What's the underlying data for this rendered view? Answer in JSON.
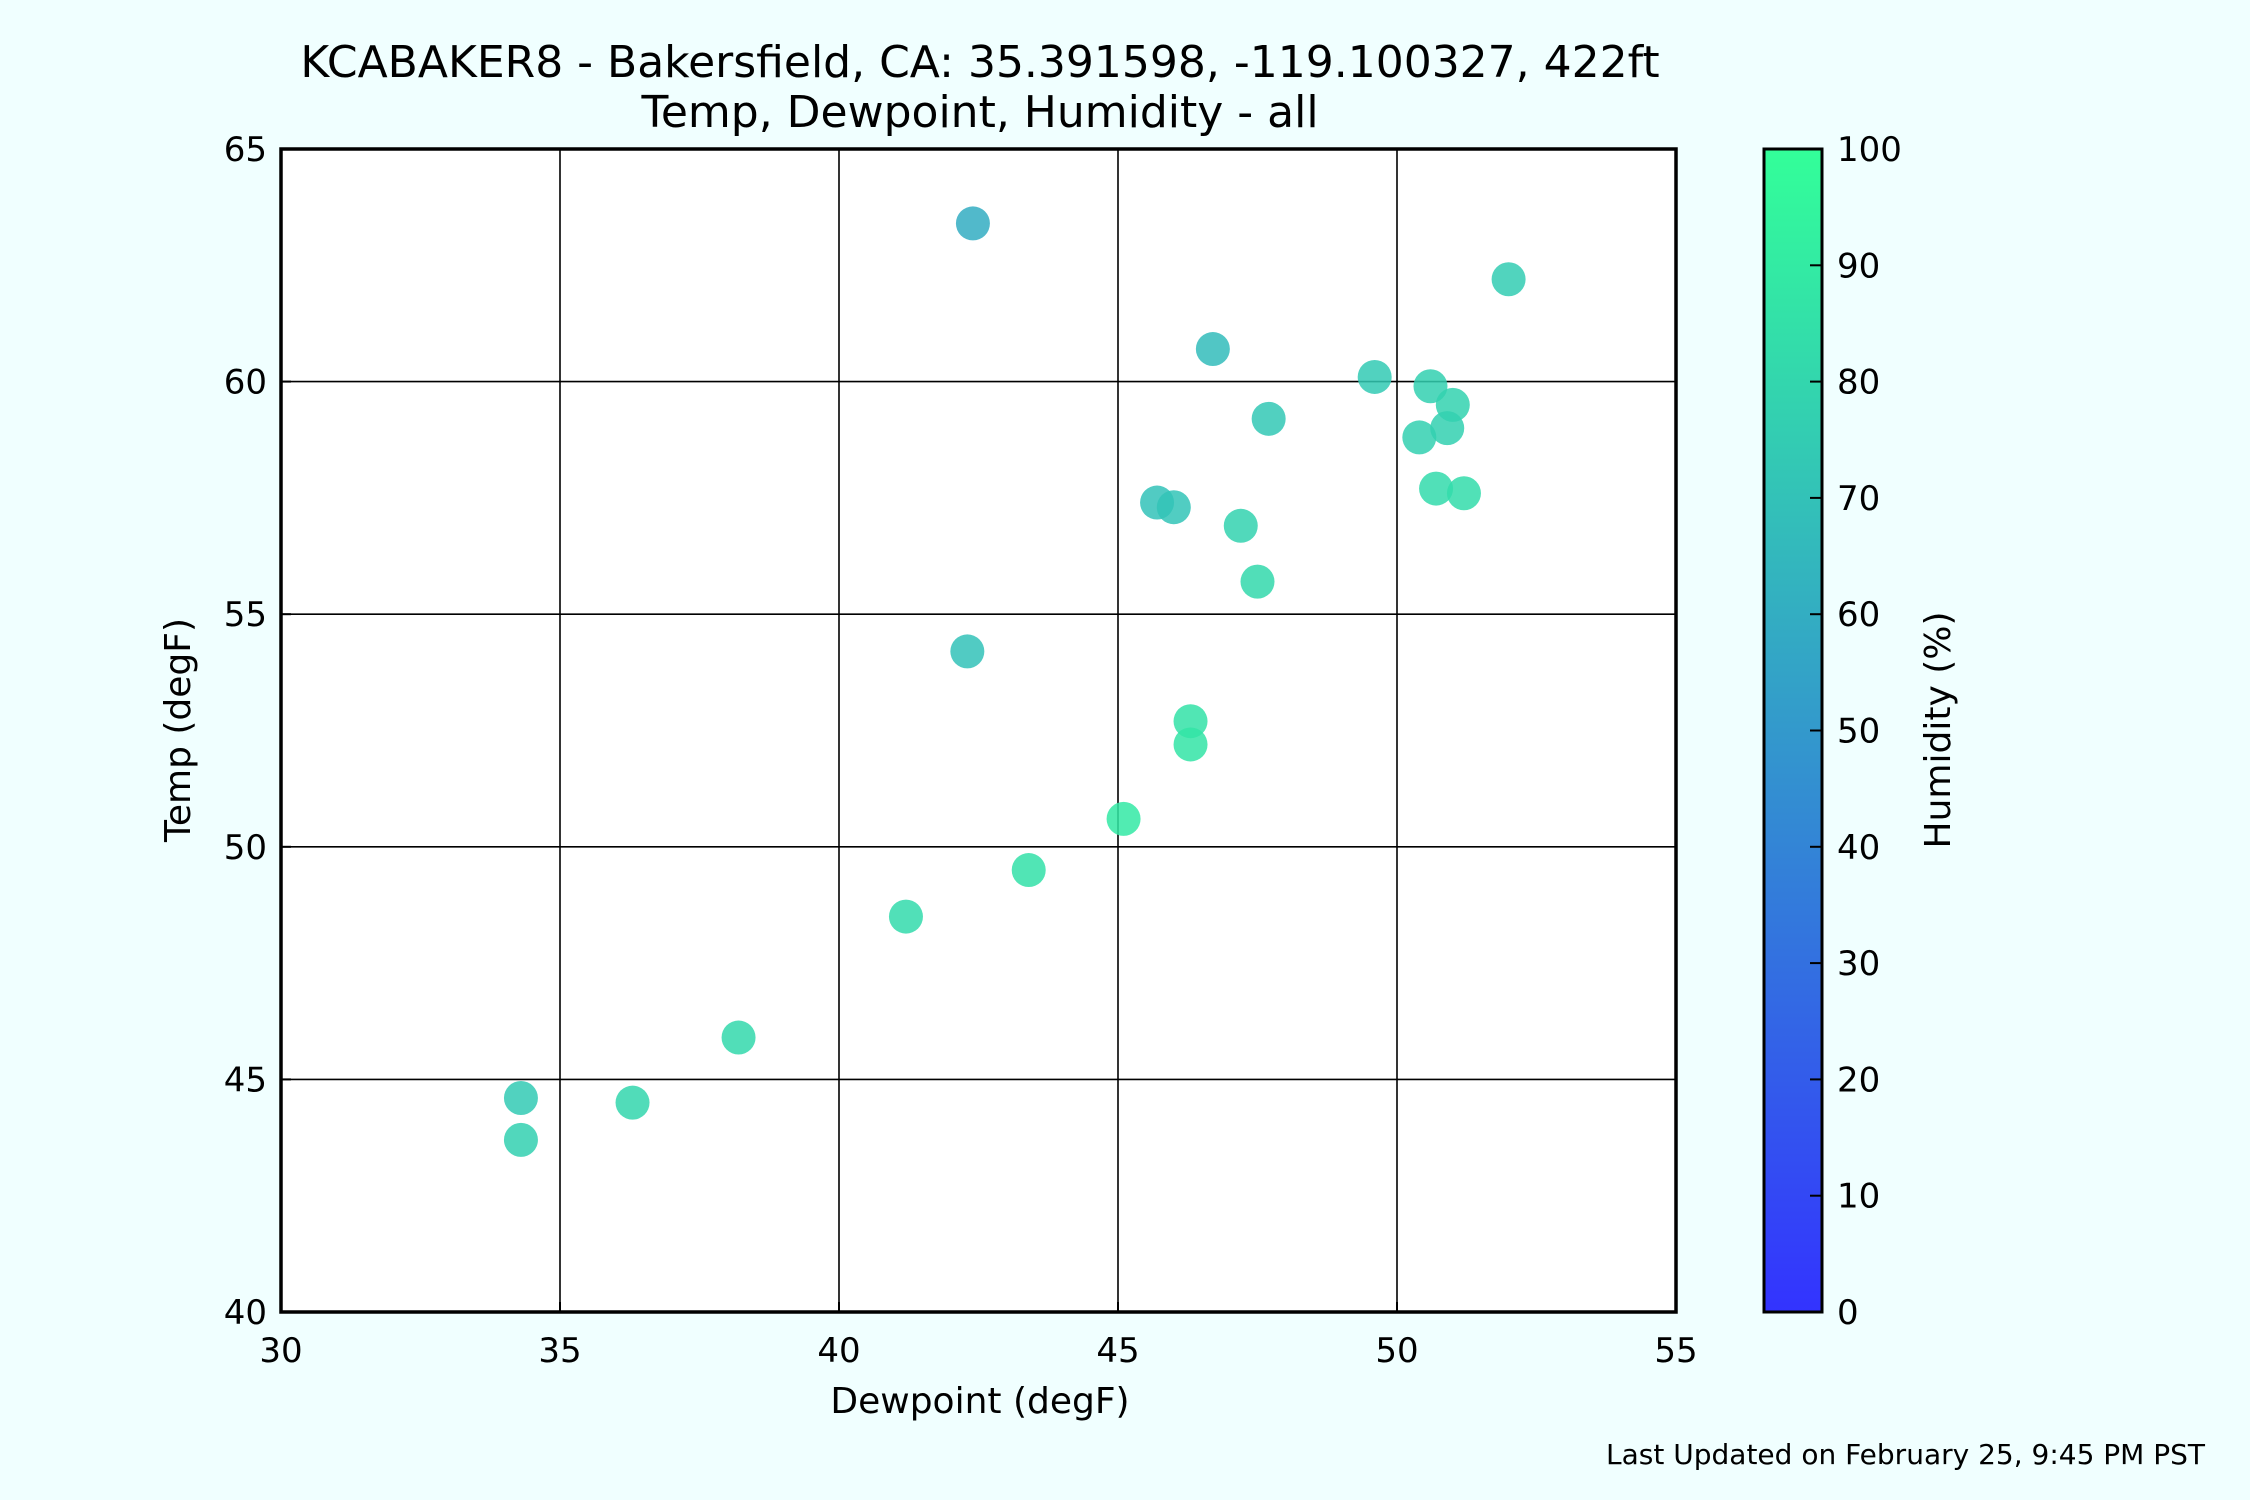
{
  "chart_data": {
    "type": "scatter",
    "title": "KCABAKER8 - Bakersfield, CA: 35.391598, -119.100327, 422ft",
    "subtitle": "Temp, Dewpoint, Humidity - all",
    "xlabel": "Dewpoint (degF)",
    "ylabel": "Temp (degF)",
    "xlim": [
      30,
      55
    ],
    "ylim": [
      40,
      65
    ],
    "xticks": [
      "30",
      "35",
      "40",
      "45",
      "50",
      "55"
    ],
    "yticks": [
      "40",
      "45",
      "50",
      "55",
      "60",
      "65"
    ],
    "grid": true,
    "colorbar": {
      "label": "Humidity (%)",
      "range": [
        0,
        100
      ],
      "ticks": [
        "0",
        "10",
        "20",
        "30",
        "40",
        "50",
        "60",
        "70",
        "80",
        "90",
        "100"
      ],
      "color_low": "#3333ff",
      "color_high": "#33ff99"
    },
    "points": [
      {
        "x": 42.4,
        "y": 63.4,
        "humidity": 60
      },
      {
        "x": 52.0,
        "y": 62.2,
        "humidity": 75
      },
      {
        "x": 46.7,
        "y": 60.7,
        "humidity": 67
      },
      {
        "x": 49.6,
        "y": 60.1,
        "humidity": 74
      },
      {
        "x": 50.6,
        "y": 59.9,
        "humidity": 77
      },
      {
        "x": 51.0,
        "y": 59.5,
        "humidity": 78
      },
      {
        "x": 47.7,
        "y": 59.2,
        "humidity": 73
      },
      {
        "x": 50.9,
        "y": 59.0,
        "humidity": 77
      },
      {
        "x": 50.4,
        "y": 58.8,
        "humidity": 77
      },
      {
        "x": 45.7,
        "y": 57.4,
        "humidity": 70
      },
      {
        "x": 46.0,
        "y": 57.3,
        "humidity": 71
      },
      {
        "x": 50.7,
        "y": 57.7,
        "humidity": 82
      },
      {
        "x": 51.2,
        "y": 57.6,
        "humidity": 83
      },
      {
        "x": 47.2,
        "y": 56.9,
        "humidity": 78
      },
      {
        "x": 47.5,
        "y": 55.7,
        "humidity": 81
      },
      {
        "x": 42.3,
        "y": 54.2,
        "humidity": 70
      },
      {
        "x": 46.3,
        "y": 52.7,
        "humidity": 86
      },
      {
        "x": 46.3,
        "y": 52.2,
        "humidity": 87
      },
      {
        "x": 45.1,
        "y": 50.6,
        "humidity": 89
      },
      {
        "x": 43.4,
        "y": 49.5,
        "humidity": 85
      },
      {
        "x": 41.2,
        "y": 48.5,
        "humidity": 82
      },
      {
        "x": 38.2,
        "y": 45.9,
        "humidity": 81
      },
      {
        "x": 34.3,
        "y": 44.6,
        "humidity": 74
      },
      {
        "x": 36.3,
        "y": 44.5,
        "humidity": 80
      },
      {
        "x": 34.3,
        "y": 43.7,
        "humidity": 77
      }
    ]
  },
  "footer": {
    "last_updated": "Last Updated on February 25, 9:45 PM PST"
  }
}
